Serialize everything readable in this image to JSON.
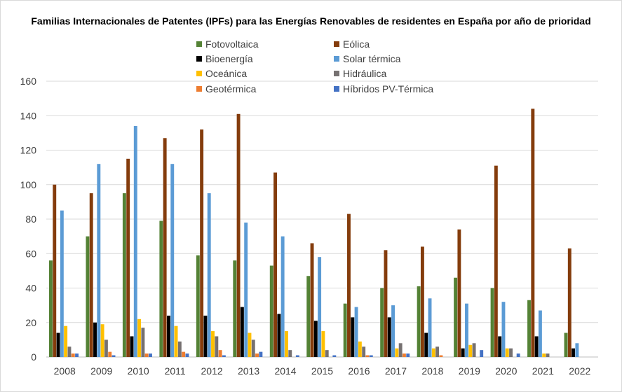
{
  "colors": {
    "Fotovoltaica": "#548235",
    "Eólica": "#843c0c",
    "Bioenergía": "#000000",
    "Solar térmica": "#5b9bd5",
    "Oceánica": "#ffc000",
    "Hidráulica": "#767171",
    "Geotérmica": "#ed7d31",
    "Híbridos PV-Térmica": "#4472c4",
    "grid": "#d9d9d9",
    "axis_text": "#404040"
  },
  "chart_data": {
    "type": "bar",
    "title": "Familias Internacionales de Patentes (IPFs) para las Energías Renovables de residentes en España por año de prioridad",
    "xlabel": "",
    "ylabel": "",
    "ylim": [
      0,
      160
    ],
    "yticks": [
      0,
      20,
      40,
      60,
      80,
      100,
      120,
      140,
      160
    ],
    "grid": true,
    "legend_position": "top",
    "categories": [
      "2008",
      "2009",
      "2010",
      "2011",
      "2012",
      "2013",
      "2014",
      "2015",
      "2016",
      "2017",
      "2018",
      "2019",
      "2020",
      "2021",
      "2022"
    ],
    "series": [
      {
        "name": "Fotovoltaica",
        "values": [
          56,
          70,
          95,
          79,
          59,
          56,
          53,
          47,
          31,
          40,
          41,
          46,
          40,
          33,
          14
        ]
      },
      {
        "name": "Eólica",
        "values": [
          100,
          95,
          115,
          127,
          132,
          141,
          107,
          66,
          83,
          62,
          64,
          74,
          111,
          144,
          63
        ]
      },
      {
        "name": "Bioenergía",
        "values": [
          14,
          20,
          12,
          24,
          24,
          29,
          25,
          21,
          23,
          23,
          14,
          5,
          12,
          12,
          5
        ]
      },
      {
        "name": "Solar térmica",
        "values": [
          85,
          112,
          134,
          112,
          95,
          78,
          70,
          58,
          29,
          30,
          34,
          31,
          32,
          27,
          8
        ]
      },
      {
        "name": "Oceánica",
        "values": [
          18,
          19,
          22,
          18,
          15,
          14,
          15,
          15,
          9,
          5,
          5,
          7,
          5,
          2,
          0
        ]
      },
      {
        "name": "Hidráulica",
        "values": [
          6,
          10,
          17,
          9,
          12,
          10,
          4,
          4,
          6,
          8,
          6,
          8,
          5,
          2,
          0
        ]
      },
      {
        "name": "Geotérmica",
        "values": [
          2,
          3,
          2,
          3,
          4,
          2,
          0,
          0,
          1,
          2,
          1,
          0,
          0,
          0,
          0
        ]
      },
      {
        "name": "Híbridos PV-Térmica",
        "values": [
          2,
          1,
          2,
          2,
          1,
          3,
          1,
          1,
          1,
          2,
          0,
          4,
          2,
          0,
          0
        ]
      }
    ]
  }
}
